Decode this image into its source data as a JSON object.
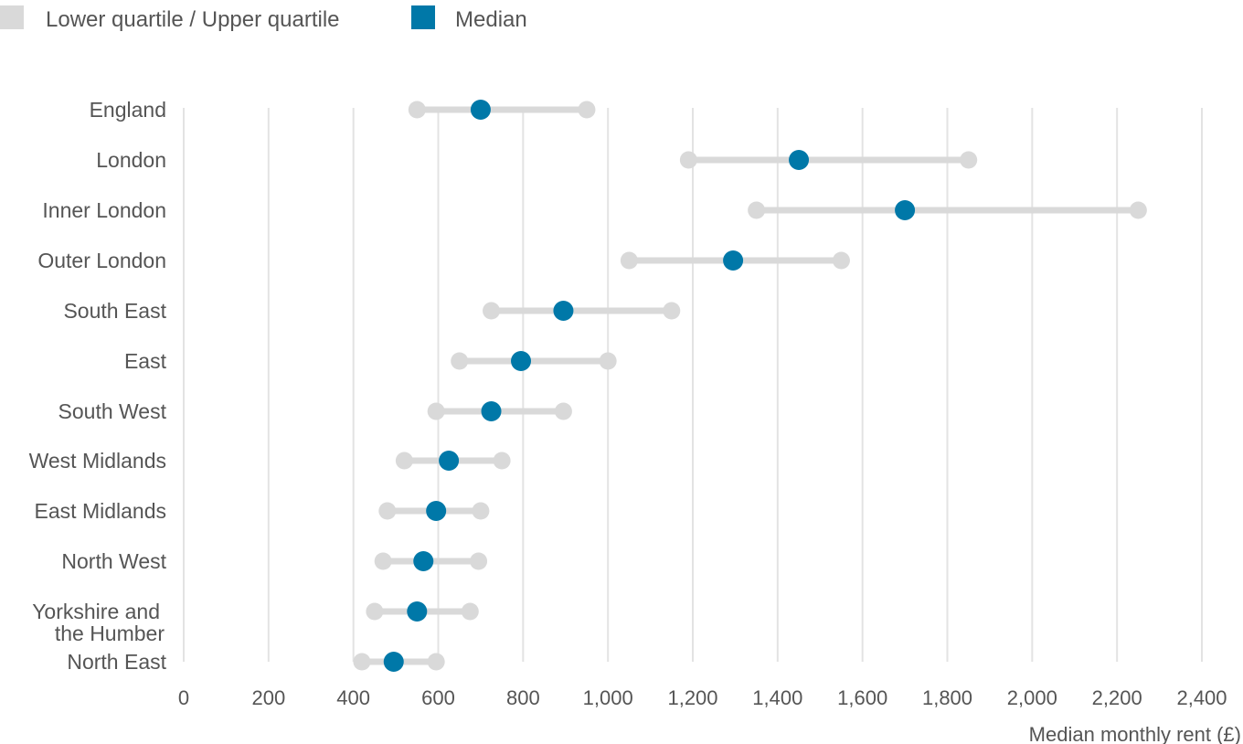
{
  "chart_data": {
    "type": "dumbbell",
    "categories": [
      "England",
      "London",
      "Inner London",
      "Outer London",
      "South East",
      "East",
      "South West",
      "West Midlands",
      "East Midlands",
      "North West",
      "Yorkshire and the Humber",
      "North East"
    ],
    "category_lines": [
      [
        "England"
      ],
      [
        "London"
      ],
      [
        "Inner London"
      ],
      [
        "Outer London"
      ],
      [
        "South East"
      ],
      [
        "East"
      ],
      [
        "South West"
      ],
      [
        "West Midlands"
      ],
      [
        "East Midlands"
      ],
      [
        "North West"
      ],
      [
        "Yorkshire and",
        "the Humber"
      ],
      [
        "North East"
      ]
    ],
    "series": [
      {
        "name": "Lower quartile / Upper quartile",
        "key": "quartiles",
        "color": "#d9d9d9"
      },
      {
        "name": "Median",
        "key": "median",
        "color": "#0078a8"
      }
    ],
    "lower_quartile": [
      550,
      1190,
      1350,
      1050,
      725,
      650,
      595,
      520,
      480,
      470,
      450,
      420
    ],
    "median": [
      700,
      1450,
      1700,
      1295,
      895,
      795,
      725,
      625,
      595,
      565,
      550,
      495
    ],
    "upper_quartile": [
      950,
      1850,
      2250,
      1550,
      1150,
      1000,
      895,
      750,
      700,
      695,
      675,
      595
    ],
    "xlabel": "Median monthly rent (£)",
    "xlim": [
      0,
      2400
    ],
    "xticks": [
      0,
      200,
      400,
      600,
      800,
      1000,
      1200,
      1400,
      1600,
      1800,
      2000,
      2200,
      2400
    ],
    "xtick_labels": [
      "0",
      "200",
      "400",
      "600",
      "800",
      "1,000",
      "1,200",
      "1,400",
      "1,600",
      "1,800",
      "2,000",
      "2,200",
      "2,400"
    ],
    "grid": "vertical",
    "legend_position": "top-left"
  }
}
